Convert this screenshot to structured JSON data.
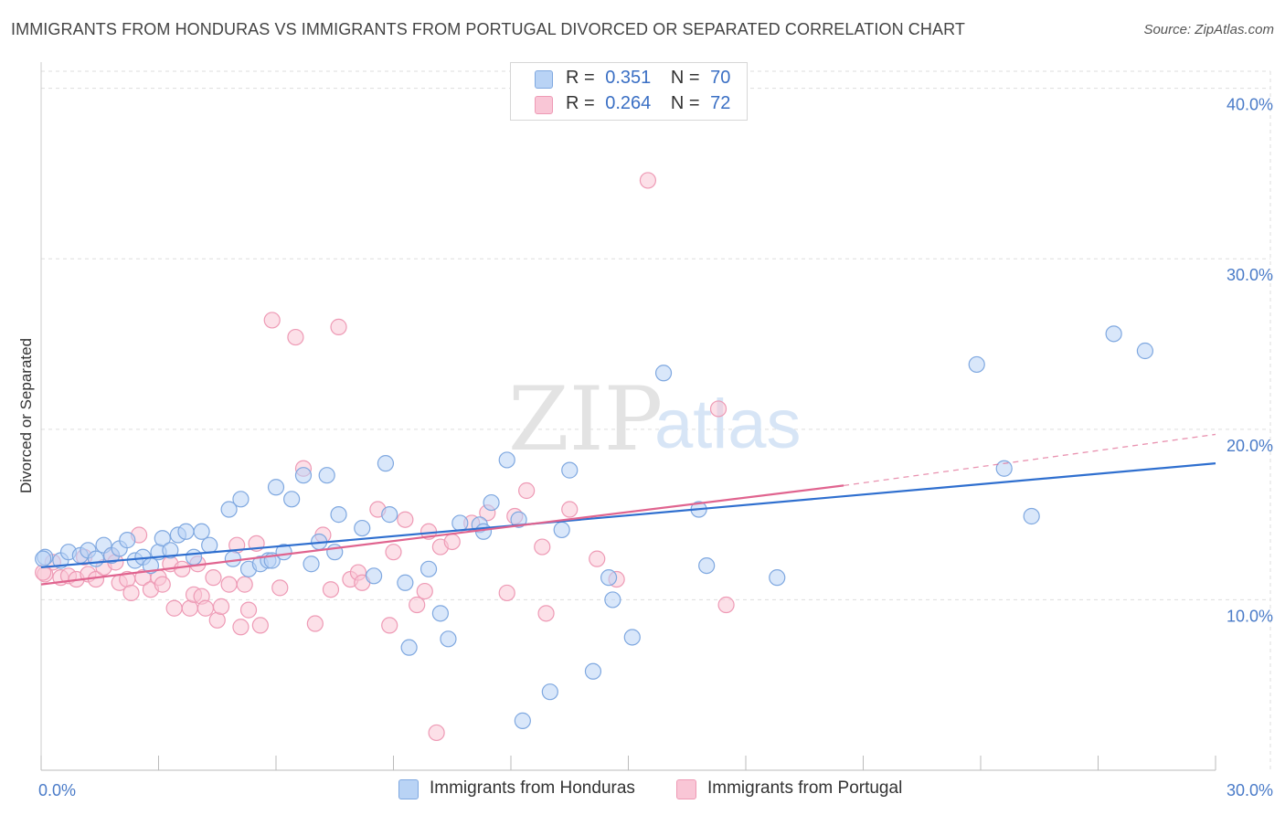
{
  "title": "IMMIGRANTS FROM HONDURAS VS IMMIGRANTS FROM PORTUGAL DIVORCED OR SEPARATED CORRELATION CHART",
  "source": "Source: ZipAtlas.com",
  "watermark": {
    "zip": "ZIP",
    "atlas": "atlas"
  },
  "legend_top": {
    "rows": [
      {
        "r_label": "R =",
        "r_value": "0.351",
        "n_label": "N =",
        "n_value": "70"
      },
      {
        "r_label": "R =",
        "r_value": "0.264",
        "n_label": "N =",
        "n_value": "72"
      }
    ]
  },
  "legend_bottom": {
    "items": [
      {
        "label": "Immigrants from Honduras"
      },
      {
        "label": "Immigrants from Portugal"
      }
    ]
  },
  "colors": {
    "honduras_fill": "#b9d3f5",
    "honduras_stroke": "#7fa8e0",
    "honduras_line": "#2f6fcf",
    "portugal_fill": "#f9c6d6",
    "portugal_stroke": "#ee9ab5",
    "portugal_line": "#e0648f",
    "grid": "#dddddd",
    "tick_label": "#4a7bc8"
  },
  "chart_data": {
    "type": "scatter",
    "ylabel": "Divorced or Separated",
    "xlim": [
      0,
      30
    ],
    "ylim": [
      0,
      41
    ],
    "x_tick_labels": [
      {
        "value": 0,
        "label": "0.0%"
      },
      {
        "value": 30,
        "label": "30.0%"
      }
    ],
    "y_tick_labels": [
      {
        "value": 10,
        "label": "10.0%"
      },
      {
        "value": 20,
        "label": "20.0%"
      },
      {
        "value": 30,
        "label": "30.0%"
      },
      {
        "value": 40,
        "label": "40.0%"
      }
    ],
    "x_minor_ticks": [
      0,
      3,
      6,
      9,
      12,
      15,
      18,
      21,
      24,
      27,
      30
    ],
    "grid": true,
    "legend_position": "top-center",
    "series": [
      {
        "name": "Immigrants from Honduras",
        "r": 0.351,
        "n": 70,
        "trend": {
          "x": [
            0,
            30
          ],
          "y": [
            11.9,
            18.0
          ],
          "dashed_to": null
        },
        "points": [
          [
            0.1,
            12.5
          ],
          [
            0.5,
            12.3
          ],
          [
            0.7,
            12.8
          ],
          [
            1.0,
            12.6
          ],
          [
            1.2,
            12.9
          ],
          [
            1.4,
            12.4
          ],
          [
            1.6,
            13.2
          ],
          [
            1.8,
            12.6
          ],
          [
            2.0,
            13.0
          ],
          [
            2.2,
            13.5
          ],
          [
            2.4,
            12.3
          ],
          [
            2.6,
            12.5
          ],
          [
            2.8,
            12.0
          ],
          [
            3.0,
            12.8
          ],
          [
            3.1,
            13.6
          ],
          [
            3.3,
            12.9
          ],
          [
            3.5,
            13.8
          ],
          [
            3.7,
            14.0
          ],
          [
            3.9,
            12.5
          ],
          [
            4.1,
            14.0
          ],
          [
            4.3,
            13.2
          ],
          [
            4.8,
            15.3
          ],
          [
            4.9,
            12.4
          ],
          [
            5.1,
            15.9
          ],
          [
            5.3,
            11.8
          ],
          [
            5.6,
            12.1
          ],
          [
            5.8,
            12.3
          ],
          [
            5.9,
            12.3
          ],
          [
            6.0,
            16.6
          ],
          [
            6.2,
            12.8
          ],
          [
            6.4,
            15.9
          ],
          [
            6.7,
            17.3
          ],
          [
            6.9,
            12.1
          ],
          [
            7.1,
            13.4
          ],
          [
            7.3,
            17.3
          ],
          [
            7.5,
            12.8
          ],
          [
            7.6,
            15.0
          ],
          [
            8.2,
            14.2
          ],
          [
            8.5,
            11.4
          ],
          [
            8.8,
            18.0
          ],
          [
            8.9,
            15.0
          ],
          [
            9.3,
            11.0
          ],
          [
            9.4,
            7.2
          ],
          [
            9.9,
            11.8
          ],
          [
            10.2,
            9.2
          ],
          [
            10.4,
            7.7
          ],
          [
            10.7,
            14.5
          ],
          [
            11.2,
            14.4
          ],
          [
            11.3,
            14.0
          ],
          [
            11.5,
            15.7
          ],
          [
            11.9,
            18.2
          ],
          [
            12.2,
            14.7
          ],
          [
            12.3,
            2.9
          ],
          [
            13.0,
            4.6
          ],
          [
            13.3,
            14.1
          ],
          [
            13.5,
            17.6
          ],
          [
            14.1,
            5.8
          ],
          [
            14.5,
            11.3
          ],
          [
            14.6,
            10.0
          ],
          [
            15.1,
            7.8
          ],
          [
            15.9,
            23.3
          ],
          [
            16.8,
            15.3
          ],
          [
            17.0,
            12.0
          ],
          [
            18.8,
            11.3
          ],
          [
            23.9,
            23.8
          ],
          [
            24.6,
            17.7
          ],
          [
            25.3,
            14.9
          ],
          [
            27.4,
            25.6
          ],
          [
            28.2,
            24.6
          ],
          [
            0.05,
            12.4
          ]
        ]
      },
      {
        "name": "Immigrants from Portugal",
        "r": 0.264,
        "n": 72,
        "trend": {
          "x": [
            0,
            20.5
          ],
          "y": [
            10.9,
            16.7
          ],
          "dashed_to": {
            "x": 30,
            "y": 19.7
          }
        },
        "points": [
          [
            0.1,
            11.5
          ],
          [
            0.3,
            12.2
          ],
          [
            0.5,
            11.3
          ],
          [
            0.7,
            11.4
          ],
          [
            0.9,
            11.2
          ],
          [
            1.1,
            12.5
          ],
          [
            1.2,
            11.5
          ],
          [
            1.4,
            11.2
          ],
          [
            1.6,
            11.9
          ],
          [
            1.8,
            12.6
          ],
          [
            1.9,
            12.2
          ],
          [
            2.0,
            11.0
          ],
          [
            2.2,
            11.2
          ],
          [
            2.3,
            10.4
          ],
          [
            2.5,
            13.8
          ],
          [
            2.6,
            11.3
          ],
          [
            2.8,
            10.6
          ],
          [
            3.0,
            11.3
          ],
          [
            3.1,
            10.9
          ],
          [
            3.3,
            12.1
          ],
          [
            3.4,
            9.5
          ],
          [
            3.6,
            11.8
          ],
          [
            3.8,
            9.5
          ],
          [
            3.9,
            10.3
          ],
          [
            4.0,
            12.1
          ],
          [
            4.1,
            10.2
          ],
          [
            4.2,
            9.5
          ],
          [
            4.4,
            11.3
          ],
          [
            4.5,
            8.8
          ],
          [
            4.6,
            9.6
          ],
          [
            4.8,
            10.9
          ],
          [
            5.0,
            13.2
          ],
          [
            5.1,
            8.4
          ],
          [
            5.2,
            10.9
          ],
          [
            5.3,
            9.4
          ],
          [
            5.5,
            13.3
          ],
          [
            5.6,
            8.5
          ],
          [
            5.9,
            26.4
          ],
          [
            6.1,
            10.7
          ],
          [
            6.5,
            25.4
          ],
          [
            6.7,
            17.7
          ],
          [
            7.0,
            8.6
          ],
          [
            7.2,
            13.8
          ],
          [
            7.4,
            10.6
          ],
          [
            7.6,
            26.0
          ],
          [
            7.9,
            11.2
          ],
          [
            8.1,
            11.6
          ],
          [
            8.2,
            11.0
          ],
          [
            8.6,
            15.3
          ],
          [
            8.9,
            8.5
          ],
          [
            9.0,
            12.8
          ],
          [
            9.3,
            14.7
          ],
          [
            9.6,
            9.7
          ],
          [
            9.8,
            10.5
          ],
          [
            9.9,
            14.0
          ],
          [
            10.1,
            2.2
          ],
          [
            10.2,
            13.1
          ],
          [
            10.5,
            13.4
          ],
          [
            11.0,
            14.5
          ],
          [
            11.4,
            15.1
          ],
          [
            11.9,
            10.4
          ],
          [
            12.1,
            14.9
          ],
          [
            12.4,
            16.4
          ],
          [
            12.8,
            13.1
          ],
          [
            12.9,
            9.2
          ],
          [
            13.5,
            15.3
          ],
          [
            14.2,
            12.4
          ],
          [
            14.7,
            11.2
          ],
          [
            15.5,
            34.6
          ],
          [
            17.3,
            21.2
          ],
          [
            17.5,
            9.7
          ],
          [
            0.05,
            11.6
          ]
        ]
      }
    ]
  }
}
